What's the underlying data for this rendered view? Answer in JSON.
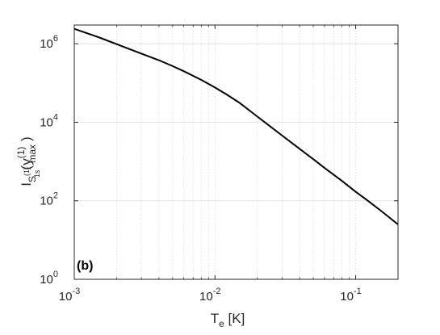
{
  "chart_data": {
    "type": "line",
    "panel_label": "(b)",
    "xlabel": {
      "main": "T",
      "sub": "e",
      "unit": " [K]"
    },
    "ylabel": {
      "base": "I",
      "sub1": "S",
      "sub1_sup": "(1)",
      "sub1_sub": "1s",
      "paren_open": "(y",
      "arg_sup": "(1)",
      "arg_sub": "max",
      "paren_close": ")"
    },
    "x_scale": "log",
    "y_scale": "log",
    "xlim": [
      0.001,
      0.2
    ],
    "ylim": [
      1,
      3000000
    ],
    "x_ticks": [
      {
        "base": "10",
        "exp": "-3",
        "value": 0.001
      },
      {
        "base": "10",
        "exp": "-2",
        "value": 0.01
      },
      {
        "base": "10",
        "exp": "-1",
        "value": 0.1
      }
    ],
    "y_ticks": [
      {
        "base": "10",
        "exp": "0",
        "value": 1
      },
      {
        "base": "10",
        "exp": "2",
        "value": 100
      },
      {
        "base": "10",
        "exp": "4",
        "value": 10000
      },
      {
        "base": "10",
        "exp": "6",
        "value": 1000000
      }
    ],
    "grid": "on (dotted minor grid in x, major grid in y)",
    "colors": {
      "line": "#000000",
      "axis": "#262626",
      "grid": "#dcdcdc"
    },
    "series": [
      {
        "x": [
          0.001,
          0.0015,
          0.002,
          0.003,
          0.004,
          0.005,
          0.006,
          0.008,
          0.01,
          0.012,
          0.015,
          0.02,
          0.025,
          0.03,
          0.04,
          0.05,
          0.06,
          0.08,
          0.1,
          0.12,
          0.15,
          0.2
        ],
        "y": [
          2400000,
          1450000,
          980000,
          560000,
          380000,
          270000,
          200000,
          120000,
          77000,
          52000,
          31000,
          14000,
          7600,
          4600,
          2100,
          1150,
          690,
          320,
          170,
          105,
          57,
          25
        ]
      }
    ]
  }
}
